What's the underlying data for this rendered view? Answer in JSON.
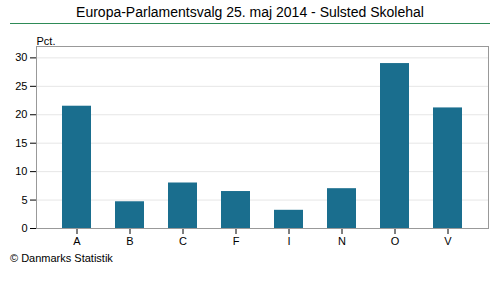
{
  "chart_data": {
    "type": "bar",
    "title": "Europa-Parlamentsvalg 25. maj 2014 - Sulsted Skolehal",
    "ylabel": "Pct.",
    "caption": "© Danmarks Statistik",
    "categories": [
      "A",
      "B",
      "C",
      "F",
      "I",
      "N",
      "O",
      "V"
    ],
    "values": [
      21.5,
      4.7,
      8.0,
      6.5,
      3.2,
      7.0,
      29.0,
      21.2
    ],
    "color": "#1a6e8e",
    "ylim": [
      0,
      32
    ],
    "yticks": [
      0,
      5,
      10,
      15,
      20,
      25,
      30
    ],
    "grid": true
  }
}
